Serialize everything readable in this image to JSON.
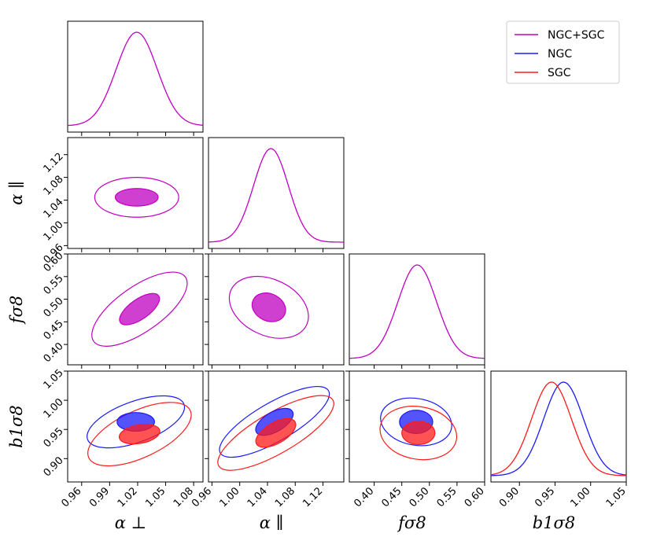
{
  "chart_data": {
    "type": "corner",
    "parameters": [
      {
        "name": "alpha_perp",
        "label": "α ⊥",
        "range": [
          0.945,
          1.09
        ],
        "ticks": [
          0.96,
          0.99,
          1.02,
          1.05,
          1.08
        ],
        "tick_labels": [
          "0.96",
          "0.99",
          "1.02",
          "1.05",
          "1.08"
        ]
      },
      {
        "name": "alpha_par",
        "label": "α ∥",
        "range": [
          0.955,
          1.15
        ],
        "ticks": [
          0.96,
          1.0,
          1.04,
          1.08,
          1.12
        ],
        "tick_labels": [
          "0.96",
          "1.00",
          "1.04",
          "1.08",
          "1.12"
        ]
      },
      {
        "name": "f_sigma8",
        "label": "fσ8",
        "range": [
          0.355,
          0.6
        ],
        "ticks": [
          0.4,
          0.45,
          0.5,
          0.55,
          0.6
        ],
        "tick_labels": [
          "0.40",
          "0.45",
          "0.50",
          "0.55",
          "0.60"
        ]
      },
      {
        "name": "b1_sigma8",
        "label": "b1σ8",
        "range": [
          0.86,
          1.05
        ],
        "ticks": [
          0.9,
          0.95,
          1.0,
          1.05
        ],
        "tick_labels": [
          "0.90",
          "0.95",
          "1.00",
          "1.05"
        ]
      }
    ],
    "series": [
      {
        "name": "NGC+SGC",
        "color": "#c000c0",
        "marginals": [
          {
            "mean": 1.019,
            "sd": 0.022
          },
          {
            "mean": 1.045,
            "sd": 0.025
          },
          {
            "mean": 0.478,
            "sd": 0.035
          },
          null
        ],
        "contours": [
          {
            "x": 0,
            "y": 1,
            "center": [
              1.019,
              1.045
            ],
            "inner": {
              "a": 0.023,
              "b": 0.0155,
              "angle": 0
            },
            "outer": {
              "a": 0.045,
              "b": 0.035,
              "angle": 0
            }
          },
          {
            "x": 0,
            "y": 2,
            "center": [
              1.022,
              0.478
            ],
            "inner": {
              "a": 0.025,
              "b": 0.022,
              "angle": 35
            },
            "outer": {
              "a": 0.06,
              "b": 0.05,
              "angle": 35
            }
          },
          {
            "x": 1,
            "y": 2,
            "center": [
              1.042,
              0.482
            ],
            "inner": {
              "a": 0.025,
              "b": 0.03,
              "angle": -25
            },
            "outer": {
              "a": 0.06,
              "b": 0.062,
              "angle": -25
            }
          }
        ]
      },
      {
        "name": "NGC",
        "color": "#1a1aff",
        "marginals": [
          null,
          null,
          null,
          {
            "mean": 0.962,
            "sd": 0.028
          }
        ],
        "contours": [
          {
            "x": 0,
            "y": 3,
            "center": [
              1.018,
              0.963
            ],
            "inner": {
              "a": 0.02,
              "b": 0.016,
              "angle": 0
            },
            "outer": {
              "a": 0.055,
              "b": 0.035,
              "angle": 20
            }
          },
          {
            "x": 1,
            "y": 3,
            "center": [
              1.05,
              0.963
            ],
            "inner": {
              "a": 0.03,
              "b": 0.017,
              "angle": 30
            },
            "outer": {
              "a": 0.09,
              "b": 0.033,
              "angle": 30
            }
          },
          {
            "x": 2,
            "y": 3,
            "center": [
              0.476,
              0.963
            ],
            "inner": {
              "a": 0.03,
              "b": 0.02,
              "angle": 0
            },
            "outer": {
              "a": 0.065,
              "b": 0.04,
              "angle": -10
            }
          }
        ]
      },
      {
        "name": "SGC",
        "color": "#ff1a1a",
        "marginals": [
          null,
          null,
          null,
          {
            "mean": 0.945,
            "sd": 0.028
          }
        ],
        "contours": [
          {
            "x": 0,
            "y": 3,
            "center": [
              1.022,
              0.942
            ],
            "inner": {
              "a": 0.022,
              "b": 0.016,
              "angle": 10
            },
            "outer": {
              "a": 0.06,
              "b": 0.04,
              "angle": 25
            }
          },
          {
            "x": 1,
            "y": 3,
            "center": [
              1.052,
              0.944
            ],
            "inner": {
              "a": 0.032,
              "b": 0.018,
              "angle": 30
            },
            "outer": {
              "a": 0.095,
              "b": 0.035,
              "angle": 30
            }
          },
          {
            "x": 2,
            "y": 3,
            "center": [
              0.48,
              0.944
            ],
            "inner": {
              "a": 0.03,
              "b": 0.02,
              "angle": 0
            },
            "outer": {
              "a": 0.07,
              "b": 0.045,
              "angle": -10
            }
          }
        ]
      }
    ],
    "legend": {
      "entries": [
        "NGC+SGC",
        "NGC",
        "SGC"
      ],
      "position": "top-right"
    }
  }
}
